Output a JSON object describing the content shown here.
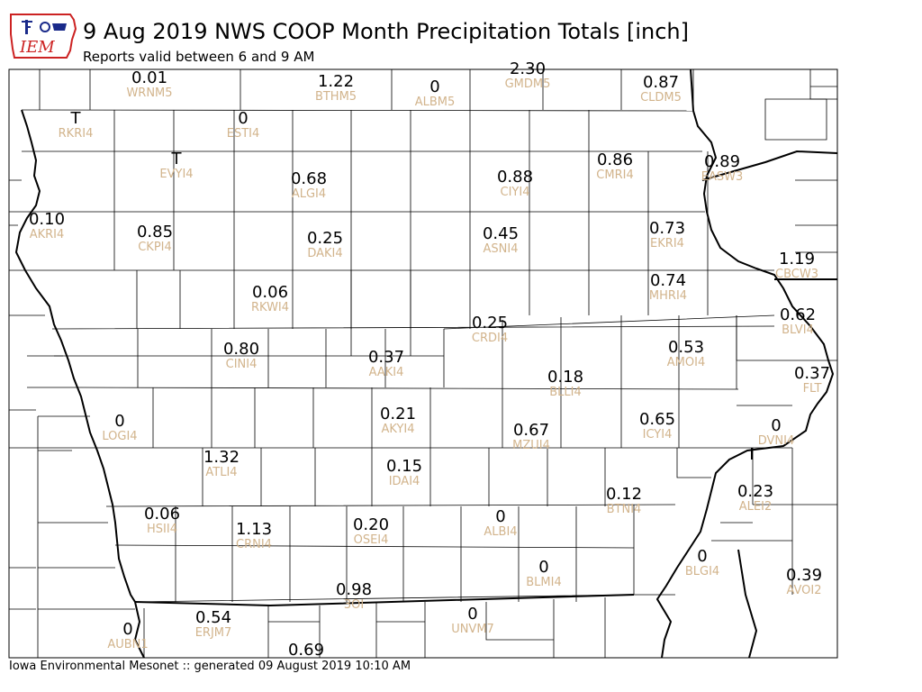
{
  "header": {
    "title": "9 Aug 2019 NWS COOP Month Precipitation Totals [inch]",
    "subtitle": "Reports valid between 6 and 9 AM",
    "logo_text": "IEM"
  },
  "footer": {
    "text": "Iowa Environmental Mesonet :: generated 09 August 2019 10:10 AM"
  },
  "colors": {
    "value": "#000000",
    "station": "#d2b48c",
    "county_line": "#000000",
    "logo_blue": "#1a2a8a",
    "logo_red": "#cc2222"
  },
  "stations": [
    {
      "id": "WRNM5",
      "value": "0.01"
    },
    {
      "id": "BTHM5",
      "value": "1.22"
    },
    {
      "id": "ALBM5",
      "value": "0"
    },
    {
      "id": "GMDM5",
      "value": "2.30"
    },
    {
      "id": "CLDM5",
      "value": "0.87"
    },
    {
      "id": "RKRI4",
      "value": "T"
    },
    {
      "id": "ESTI4",
      "value": "0"
    },
    {
      "id": "EVYI4",
      "value": "T"
    },
    {
      "id": "ALGI4",
      "value": "0.68"
    },
    {
      "id": "CIYI4",
      "value": "0.88"
    },
    {
      "id": "CMRI4",
      "value": "0.86"
    },
    {
      "id": "EASW3",
      "value": "0.89"
    },
    {
      "id": "AKRI4",
      "value": "0.10"
    },
    {
      "id": "CKPI4",
      "value": "0.85"
    },
    {
      "id": "DAKI4",
      "value": "0.25"
    },
    {
      "id": "ASNI4",
      "value": "0.45"
    },
    {
      "id": "EKRI4",
      "value": "0.73"
    },
    {
      "id": "CBCW3",
      "value": "1.19"
    },
    {
      "id": "RKWI4",
      "value": "0.06"
    },
    {
      "id": "MHRI4",
      "value": "0.74"
    },
    {
      "id": "CRDI4",
      "value": "0.25"
    },
    {
      "id": "BLVI4",
      "value": "0.62"
    },
    {
      "id": "CINI4",
      "value": "0.80"
    },
    {
      "id": "AAKI4",
      "value": "0.37"
    },
    {
      "id": "AMOI4",
      "value": "0.53"
    },
    {
      "id": "FLT",
      "value": "0.37"
    },
    {
      "id": "BLLI4",
      "value": "0.18"
    },
    {
      "id": "LOGI4",
      "value": "0"
    },
    {
      "id": "AKYI4",
      "value": "0.21"
    },
    {
      "id": "ICYI4",
      "value": "0.65"
    },
    {
      "id": "MZUI4",
      "value": "0.67"
    },
    {
      "id": "DVNI4",
      "value": "0"
    },
    {
      "id": "ATLI4",
      "value": "1.32"
    },
    {
      "id": "IDAI4",
      "value": "0.15"
    },
    {
      "id": "ALEI2",
      "value": "0.23"
    },
    {
      "id": "BTNI4",
      "value": "0.12"
    },
    {
      "id": "HSII4",
      "value": "0.06"
    },
    {
      "id": "CRNI4",
      "value": "1.13"
    },
    {
      "id": "OSEI4",
      "value": "0.20"
    },
    {
      "id": "ALBI4",
      "value": "0"
    },
    {
      "id": "BLMI4",
      "value": "0"
    },
    {
      "id": "BLGI4",
      "value": "0"
    },
    {
      "id": "AVOI2",
      "value": "0.39"
    },
    {
      "id": "3OI",
      "value": "0.98"
    },
    {
      "id": "ERJM7",
      "value": "0.54"
    },
    {
      "id": "UNVM7",
      "value": "0"
    },
    {
      "id": "AUBN1",
      "value": "0"
    },
    {
      "id": "",
      "value": "0.69"
    }
  ]
}
